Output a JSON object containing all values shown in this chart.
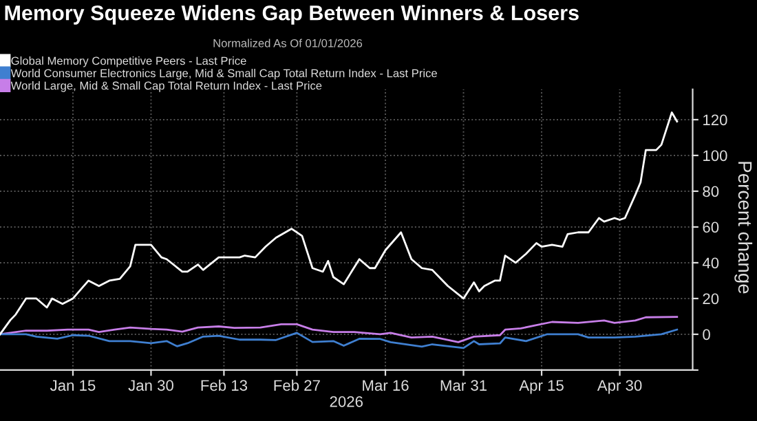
{
  "chart_data": {
    "type": "line",
    "title": "Memory Squeeze Widens Gap Between Winners & Losers",
    "subtitle": "Normalized As Of 01/01/2026",
    "xlabel": "2026",
    "ylabel": "Percent change",
    "xlim": [
      "2026-01-01",
      "2026-05-14"
    ],
    "xticks": [
      {
        "value": "2026-01-15",
        "label": "Jan 15"
      },
      {
        "value": "2026-01-30",
        "label": "Jan 30"
      },
      {
        "value": "2026-02-13",
        "label": "Feb 13"
      },
      {
        "value": "2026-02-27",
        "label": "Feb 27"
      },
      {
        "value": "2026-03-16",
        "label": "Mar 16"
      },
      {
        "value": "2026-03-31",
        "label": "Mar 31"
      },
      {
        "value": "2026-04-15",
        "label": "Apr 15"
      },
      {
        "value": "2026-04-30",
        "label": "Apr 30"
      }
    ],
    "ylim": [
      -20,
      137
    ],
    "yticks": [
      {
        "value": -20,
        "label": null
      },
      0,
      20,
      40,
      60,
      80,
      100,
      120
    ],
    "grid": true,
    "legend": "top left",
    "series": [
      {
        "name": "World Large, Mid & Small Cap Total Return Index - Last Price",
        "color": "#c77ee8",
        "x": [
          "2026-01-01",
          "2026-01-06",
          "2026-01-10",
          "2026-01-14",
          "2026-01-18",
          "2026-01-20",
          "2026-01-23",
          "2026-01-26",
          "2026-01-30",
          "2026-02-02",
          "2026-02-05",
          "2026-02-08",
          "2026-02-12",
          "2026-02-15",
          "2026-02-20",
          "2026-02-24",
          "2026-02-27",
          "2026-03-02",
          "2026-03-06",
          "2026-03-10",
          "2026-03-15",
          "2026-03-17",
          "2026-03-21",
          "2026-03-25",
          "2026-03-30",
          "2026-04-02",
          "2026-04-07",
          "2026-04-08",
          "2026-04-11",
          "2026-04-14",
          "2026-04-17",
          "2026-04-22",
          "2026-04-27",
          "2026-04-29",
          "2026-05-03",
          "2026-05-05",
          "2026-05-11"
        ],
        "values": [
          0,
          2,
          2,
          2.6,
          2.6,
          1.3,
          2.6,
          3.8,
          3,
          2.6,
          1.5,
          3.8,
          4.4,
          3.6,
          3.8,
          5.6,
          5.6,
          2.6,
          1.3,
          1.3,
          0,
          0.8,
          -1.8,
          -1.3,
          -4.4,
          -1.3,
          -0.5,
          2.6,
          3.3,
          5.1,
          6.9,
          6.4,
          7.7,
          6.4,
          7.7,
          9.5,
          9.7
        ]
      },
      {
        "name": "World Consumer Electronics Large, Mid & Small Cap Total Return Index - Last Price",
        "color": "#3f7fd0",
        "x": [
          "2026-01-01",
          "2026-01-06",
          "2026-01-08",
          "2026-01-12",
          "2026-01-15",
          "2026-01-18",
          "2026-01-22",
          "2026-01-26",
          "2026-01-30",
          "2026-02-02",
          "2026-02-04",
          "2026-02-06",
          "2026-02-09",
          "2026-02-12",
          "2026-02-16",
          "2026-02-20",
          "2026-02-23",
          "2026-02-27",
          "2026-03-02",
          "2026-03-06",
          "2026-03-08",
          "2026-03-11",
          "2026-03-15",
          "2026-03-17",
          "2026-03-23",
          "2026-03-25",
          "2026-03-31",
          "2026-04-02",
          "2026-04-03",
          "2026-04-07",
          "2026-04-08",
          "2026-04-12",
          "2026-04-16",
          "2026-04-22",
          "2026-04-24",
          "2026-04-29",
          "2026-05-03",
          "2026-05-08",
          "2026-05-11"
        ],
        "values": [
          0,
          0,
          -1.3,
          -2.5,
          -0.5,
          -0.8,
          -3.8,
          -3.8,
          -5,
          -3.8,
          -6.7,
          -5,
          -1.3,
          -0.8,
          -3,
          -3,
          -3.2,
          0.8,
          -4.3,
          -3.8,
          -6.4,
          -2.5,
          -2.6,
          -4.4,
          -6.9,
          -5.6,
          -7.7,
          -3.8,
          -5.6,
          -5.1,
          -1.8,
          -3.8,
          0,
          0,
          -1.8,
          -1.8,
          -1.3,
          0,
          2.6
        ]
      },
      {
        "name": "Global Memory Competitive Peers - Last Price",
        "color": "#ffffff",
        "x": [
          "2026-01-01",
          "2026-01-03",
          "2026-01-04",
          "2026-01-06",
          "2026-01-08",
          "2026-01-10",
          "2026-01-11",
          "2026-01-13",
          "2026-01-15",
          "2026-01-18",
          "2026-01-20",
          "2026-01-22",
          "2026-01-24",
          "2026-01-26",
          "2026-01-27",
          "2026-01-30",
          "2026-02-01",
          "2026-02-02",
          "2026-02-05",
          "2026-02-06",
          "2026-02-08",
          "2026-02-09",
          "2026-02-12",
          "2026-02-16",
          "2026-02-17",
          "2026-02-19",
          "2026-02-21",
          "2026-02-23",
          "2026-02-26",
          "2026-02-28",
          "2026-03-02",
          "2026-03-04",
          "2026-03-05",
          "2026-03-06",
          "2026-03-08",
          "2026-03-11",
          "2026-03-13",
          "2026-03-14",
          "2026-03-16",
          "2026-03-19",
          "2026-03-21",
          "2026-03-23",
          "2026-03-25",
          "2026-03-27",
          "2026-03-28",
          "2026-03-31",
          "2026-04-02",
          "2026-04-03",
          "2026-04-04",
          "2026-04-06",
          "2026-04-07",
          "2026-04-08",
          "2026-04-10",
          "2026-04-12",
          "2026-04-14",
          "2026-04-15",
          "2026-04-17",
          "2026-04-19",
          "2026-04-20",
          "2026-04-22",
          "2026-04-24",
          "2026-04-26",
          "2026-04-27",
          "2026-04-29",
          "2026-04-30",
          "2026-05-01",
          "2026-05-03",
          "2026-05-04",
          "2026-05-05",
          "2026-05-07",
          "2026-05-08",
          "2026-05-10",
          "2026-05-11"
        ],
        "values": [
          0,
          8,
          11,
          20,
          20,
          15,
          20,
          17,
          20,
          30,
          27,
          30,
          31,
          38,
          50,
          50,
          43,
          42,
          35,
          35,
          39,
          36,
          43,
          43,
          44,
          43,
          49,
          54,
          59,
          55,
          37,
          35,
          41,
          32,
          28,
          42,
          37,
          37,
          47,
          57,
          42,
          37,
          36,
          30,
          27,
          20,
          29,
          24,
          27,
          30,
          30,
          44,
          40,
          45,
          51,
          49,
          50,
          49,
          56,
          57,
          57,
          65,
          63,
          65,
          64,
          65,
          78,
          85,
          103,
          103,
          106,
          124,
          119
        ]
      }
    ]
  }
}
